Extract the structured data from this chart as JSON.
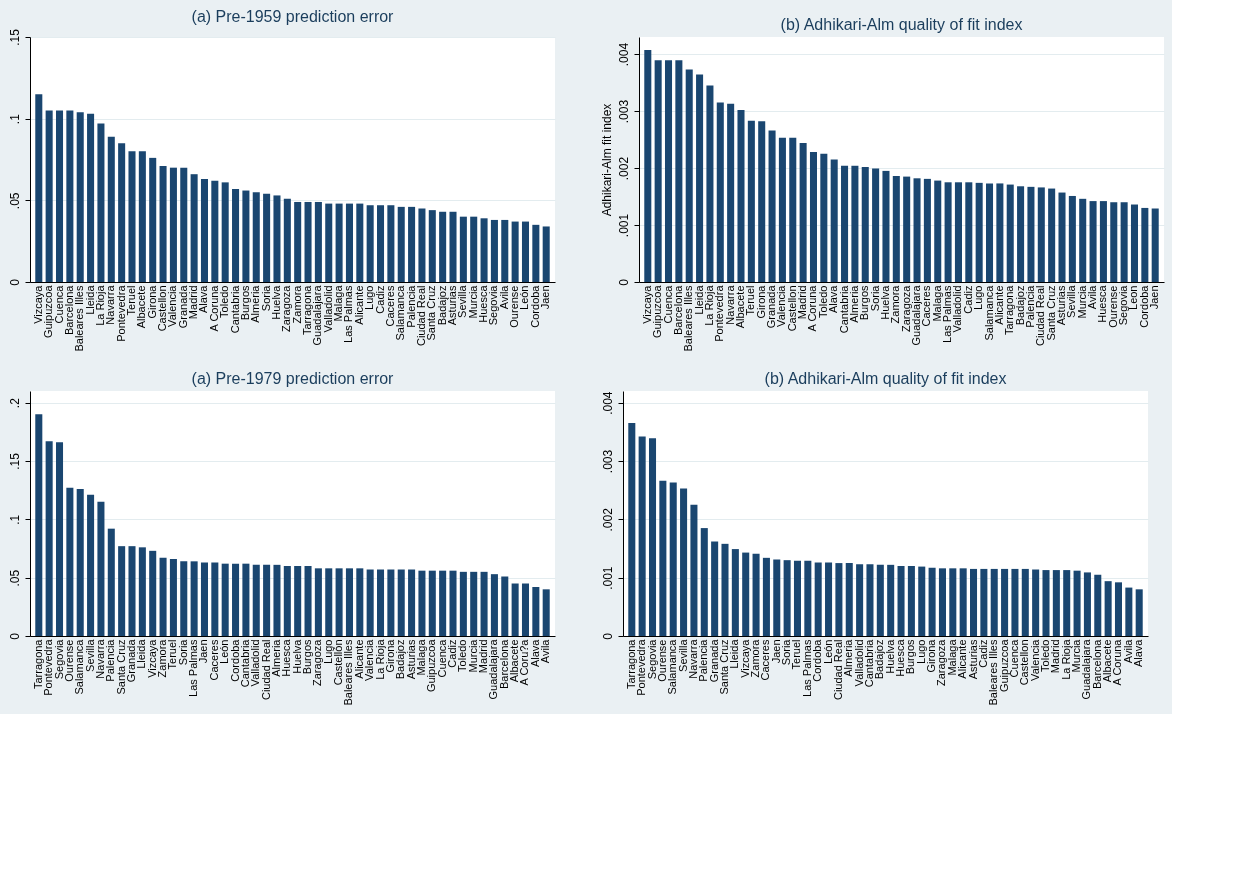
{
  "chart_data": [
    {
      "type": "bar",
      "title": "(a) Pre-1959 prediction error",
      "color": "#1a4670",
      "grid": "y",
      "ylim": [
        0,
        0.15
      ],
      "yticks": [
        0,
        {
          "value": 0.05,
          "label": ".05"
        },
        {
          "value": 0.1,
          "label": ".1"
        },
        {
          "value": 0.15,
          "label": ".15"
        }
      ],
      "categories": [
        "Vizcaya",
        "Guipuzcoa",
        "Cuenca",
        "Barcelona",
        "Baleares Illes",
        "Lleida",
        "La Rioja",
        "Navarra",
        "Pontevedra",
        "Teruel",
        "Albacete",
        "Girona",
        "Castellon",
        "Valencia",
        "Granada",
        "Madrid",
        "Alava",
        "A Coruna",
        "Toledo",
        "Cantabria",
        "Burgos",
        "Almeria",
        "Soria",
        "Huelva",
        "Zaragoza",
        "Zamora",
        "Tarragona",
        "Guadalajara",
        "Valladolid",
        "Malaga",
        "Las Palmas",
        "Alicante",
        "Lugo",
        "Cadiz",
        "Caceres",
        "Salamanca",
        "Palencia",
        "Ciudad Real",
        "Santa Cruz",
        "Badajoz",
        "Asturias",
        "Sevilla",
        "Murcia",
        "Huesca",
        "Segovia",
        "Avila",
        "Ourense",
        "León",
        "Cordoba",
        "Jaen"
      ],
      "values": [
        0.115,
        0.105,
        0.105,
        0.105,
        0.104,
        0.103,
        0.097,
        0.089,
        0.085,
        0.08,
        0.08,
        0.076,
        0.071,
        0.07,
        0.07,
        0.066,
        0.063,
        0.062,
        0.061,
        0.057,
        0.056,
        0.055,
        0.054,
        0.053,
        0.051,
        0.049,
        0.049,
        0.049,
        0.048,
        0.048,
        0.048,
        0.048,
        0.047,
        0.047,
        0.047,
        0.046,
        0.046,
        0.045,
        0.044,
        0.043,
        0.043,
        0.04,
        0.04,
        0.039,
        0.038,
        0.038,
        0.037,
        0.037,
        0.035,
        0.034
      ]
    },
    {
      "type": "bar",
      "title": "(b) Adhikari-Alm quality of fit index",
      "ylabel": "Adhikari-Alm fit index",
      "color": "#1a4670",
      "grid": "y",
      "ylim": [
        0,
        0.0043
      ],
      "yticks": [
        0,
        {
          "value": 0.001,
          "label": ".001"
        },
        {
          "value": 0.002,
          "label": ".002"
        },
        {
          "value": 0.003,
          "label": ".003"
        },
        {
          "value": 0.004,
          "label": ".004"
        }
      ],
      "categories": [
        "Vizcaya",
        "Guipuzcoa",
        "Cuenca",
        "Barcelona",
        "Baleares Illes",
        "Lleida",
        "La Rioja",
        "Pontevedra",
        "Navarra",
        "Albacete",
        "Teruel",
        "Girona",
        "Granada",
        "Valencia",
        "Castellon",
        "Madrid",
        "A Coruna",
        "Toledo",
        "Alava",
        "Cantabria",
        "Almeria",
        "Burgos",
        "Soria",
        "Huelva",
        "Zamora",
        "Zaragoza",
        "Guadalajara",
        "Caceres",
        "Malaga",
        "Las Palmas",
        "Valladolid",
        "Cadiz",
        "Lugo",
        "Salamanca",
        "Alicante",
        "Tarragona",
        "Badajoz",
        "Palencia",
        "Ciudad Real",
        "Santa Cruz",
        "Asturias",
        "Sevilla",
        "Murcia",
        "Avila",
        "Huesca",
        "Ourense",
        "Segovia",
        "Leon",
        "Cordoba",
        "Jaen"
      ],
      "values": [
        0.00407,
        0.00389,
        0.00389,
        0.00389,
        0.00373,
        0.00364,
        0.00345,
        0.00315,
        0.00313,
        0.00302,
        0.00283,
        0.00282,
        0.00266,
        0.00253,
        0.00253,
        0.00244,
        0.00228,
        0.00225,
        0.00215,
        0.00204,
        0.00204,
        0.00202,
        0.00199,
        0.00195,
        0.00186,
        0.00185,
        0.00182,
        0.00181,
        0.00178,
        0.00175,
        0.00175,
        0.00175,
        0.00174,
        0.00173,
        0.00173,
        0.00171,
        0.00168,
        0.00167,
        0.00166,
        0.00164,
        0.00157,
        0.00151,
        0.00146,
        0.00142,
        0.00142,
        0.0014,
        0.0014,
        0.00136,
        0.0013,
        0.00129
      ]
    },
    {
      "type": "bar",
      "title": "(a) Pre-1979 prediction error",
      "color": "#1a4670",
      "grid": "y",
      "ylim": [
        0,
        0.21
      ],
      "yticks": [
        0,
        {
          "value": 0.05,
          "label": ".05"
        },
        {
          "value": 0.1,
          "label": ".1"
        },
        {
          "value": 0.15,
          "label": ".15"
        },
        {
          "value": 0.2,
          "label": ".2"
        }
      ],
      "categories": [
        "Tarragona",
        "Pontevedra",
        "Segovia",
        "Ourense",
        "Salamanca",
        "Sevilla",
        "Navarra",
        "Palencia",
        "Santa Cruz",
        "Granada",
        "Lleida",
        "Vizcaya",
        "Zamora",
        "Teruel",
        "Soria",
        "Las Palmas",
        "Jaen",
        "Caceres",
        "León",
        "Cordoba",
        "Cantabria",
        "Valladolid",
        "Ciudad Real",
        "Almeria",
        "Huesca",
        "Huelva",
        "Burgos",
        "Zaragoza",
        "Lugo",
        "Castellón",
        "Baleares Illes",
        "Alicante",
        "Valencia",
        "La Rioja",
        "Girona",
        "Badajoz",
        "Asturias",
        "Malaga",
        "Guipuzcoa",
        "Cuenca",
        "Cadiz",
        "Toledo",
        "Murcia",
        "Madrid",
        "Guadalajara",
        "Barcelona",
        "Albacete",
        "A Coru?a",
        "Alava",
        "Avila"
      ],
      "values": [
        0.19,
        0.167,
        0.166,
        0.127,
        0.126,
        0.121,
        0.115,
        0.092,
        0.077,
        0.077,
        0.076,
        0.073,
        0.067,
        0.066,
        0.064,
        0.064,
        0.063,
        0.063,
        0.062,
        0.062,
        0.062,
        0.061,
        0.061,
        0.061,
        0.06,
        0.06,
        0.06,
        0.058,
        0.058,
        0.058,
        0.058,
        0.058,
        0.057,
        0.057,
        0.057,
        0.057,
        0.057,
        0.056,
        0.056,
        0.056,
        0.056,
        0.055,
        0.055,
        0.055,
        0.053,
        0.051,
        0.045,
        0.045,
        0.042,
        0.04
      ]
    },
    {
      "type": "bar",
      "title": "(b) Adhikari-Alm quality of fit index",
      "color": "#1a4670",
      "grid": "y",
      "ylim": [
        0,
        0.0042
      ],
      "yticks": [
        0,
        {
          "value": 0.001,
          "label": ".001"
        },
        {
          "value": 0.002,
          "label": ".002"
        },
        {
          "value": 0.003,
          "label": ".003"
        },
        {
          "value": 0.004,
          "label": ".004"
        }
      ],
      "categories": [
        "Tarragona",
        "Pontevedra",
        "Segovia",
        "Ourense",
        "Salamanca",
        "Sevilla",
        "Navarra",
        "Palencia",
        "Granada",
        "Santa Cruz",
        "Lleida",
        "Vizcaya",
        "Zamora",
        "Caceres",
        "Jaen",
        "Soria",
        "Teruel",
        "Las Palmas",
        "Cordoba",
        "León",
        "Ciudad Real",
        "Almeria",
        "Valladolid",
        "Cantabria",
        "Badajoz",
        "Huelva",
        "Huesca",
        "Burgos",
        "Lugo",
        "Girona",
        "Zaragoza",
        "Malaga",
        "Alicante",
        "Asturias",
        "Cadiz",
        "Baleares Illes",
        "Guipuzcoa",
        "Cuenca",
        "Castellon",
        "Valencia",
        "Toledo",
        "Madrid",
        "La Rioja",
        "Murcia",
        "Guadalajara",
        "Barcelona",
        "Albacete",
        "A Coruna",
        "Avila",
        "Alava"
      ],
      "values": [
        0.00365,
        0.00342,
        0.00339,
        0.00266,
        0.00263,
        0.00253,
        0.00225,
        0.00185,
        0.00162,
        0.00158,
        0.00149,
        0.00143,
        0.00141,
        0.00134,
        0.00131,
        0.0013,
        0.00129,
        0.00129,
        0.00126,
        0.00126,
        0.00125,
        0.00125,
        0.00123,
        0.00123,
        0.00122,
        0.00122,
        0.0012,
        0.0012,
        0.00119,
        0.00117,
        0.00116,
        0.00116,
        0.00116,
        0.00115,
        0.00115,
        0.00115,
        0.00115,
        0.00115,
        0.00115,
        0.00114,
        0.00113,
        0.00113,
        0.00113,
        0.00112,
        0.00109,
        0.00105,
        0.00094,
        0.00092,
        0.00083,
        0.0008
      ]
    }
  ]
}
